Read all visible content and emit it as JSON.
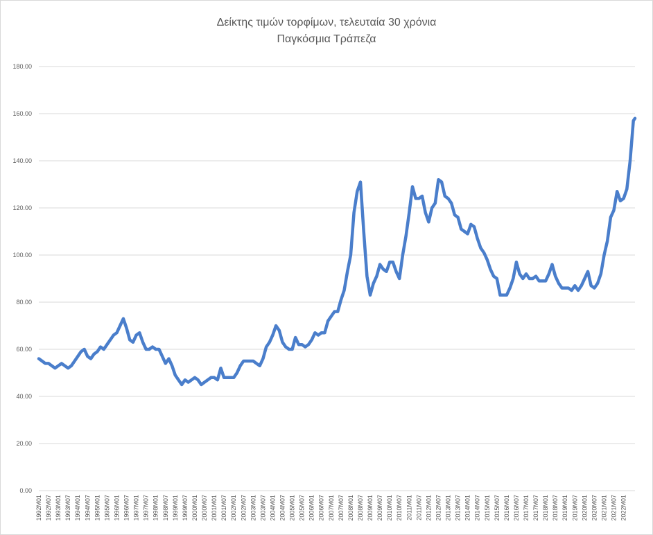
{
  "chart_data": {
    "type": "line",
    "title": "Δείκτης τιμών τορφίμων, τελευταία 30 χρόνια",
    "subtitle": "Παγκόσμια Τράπεζα",
    "xlabel": "",
    "ylabel": "",
    "ylim": [
      0,
      180
    ],
    "y_ticks": [
      "0.00",
      "20.00",
      "40.00",
      "60.00",
      "80.00",
      "100.00",
      "120.00",
      "140.00",
      "160.00",
      "180.00"
    ],
    "grid": true,
    "legend": "none",
    "line_color": "#4a7ecb",
    "x_tick_labels": [
      "1992M01",
      "1992M07",
      "1993M01",
      "1993M07",
      "1994M01",
      "1994M07",
      "1995M01",
      "1995M07",
      "1996M01",
      "1996M07",
      "1997M01",
      "1997M07",
      "1998M01",
      "1998M07",
      "1999M01",
      "1999M07",
      "2000M01",
      "2000M07",
      "2001M01",
      "2001M07",
      "2002M01",
      "2002M07",
      "2003M01",
      "2003M07",
      "2004M01",
      "2004M07",
      "2005M01",
      "2005M07",
      "2006M01",
      "2006M07",
      "2007M01",
      "2007M07",
      "2008M01",
      "2008M07",
      "2009M01",
      "2009M07",
      "2010M01",
      "2010M07",
      "2011M01",
      "2011M07",
      "2012M01",
      "2012M07",
      "2013M01",
      "2013M07",
      "2014M01",
      "2014M07",
      "2015M01",
      "2015M07",
      "2016M01",
      "2016M07",
      "2017M01",
      "2017M07",
      "2018M01",
      "2018M07",
      "2019M01",
      "2019M07",
      "2020M01",
      "2020M07",
      "2021M01",
      "2021M07",
      "2022M01"
    ],
    "series": [
      {
        "points": [
          [
            "1992M01",
            56
          ],
          [
            "1992M03",
            55
          ],
          [
            "1992M05",
            54
          ],
          [
            "1992M07",
            54
          ],
          [
            "1992M09",
            53
          ],
          [
            "1992M11",
            52
          ],
          [
            "1993M01",
            53
          ],
          [
            "1993M03",
            54
          ],
          [
            "1993M05",
            53
          ],
          [
            "1993M07",
            52
          ],
          [
            "1993M09",
            53
          ],
          [
            "1993M11",
            55
          ],
          [
            "1994M01",
            57
          ],
          [
            "1994M03",
            59
          ],
          [
            "1994M05",
            60
          ],
          [
            "1994M07",
            57
          ],
          [
            "1994M09",
            56
          ],
          [
            "1994M11",
            58
          ],
          [
            "1995M01",
            59
          ],
          [
            "1995M03",
            61
          ],
          [
            "1995M05",
            60
          ],
          [
            "1995M07",
            62
          ],
          [
            "1995M09",
            64
          ],
          [
            "1995M11",
            66
          ],
          [
            "1996M01",
            67
          ],
          [
            "1996M03",
            70
          ],
          [
            "1996M05",
            73
          ],
          [
            "1996M07",
            69
          ],
          [
            "1996M09",
            64
          ],
          [
            "1996M11",
            63
          ],
          [
            "1997M01",
            66
          ],
          [
            "1997M03",
            67
          ],
          [
            "1997M05",
            63
          ],
          [
            "1997M07",
            60
          ],
          [
            "1997M09",
            60
          ],
          [
            "1997M11",
            61
          ],
          [
            "1998M01",
            60
          ],
          [
            "1998M03",
            60
          ],
          [
            "1998M05",
            57
          ],
          [
            "1998M07",
            54
          ],
          [
            "1998M09",
            56
          ],
          [
            "1998M11",
            53
          ],
          [
            "1999M01",
            49
          ],
          [
            "1999M03",
            47
          ],
          [
            "1999M05",
            45
          ],
          [
            "1999M07",
            47
          ],
          [
            "1999M09",
            46
          ],
          [
            "1999M11",
            47
          ],
          [
            "2000M01",
            48
          ],
          [
            "2000M03",
            47
          ],
          [
            "2000M05",
            45
          ],
          [
            "2000M07",
            46
          ],
          [
            "2000M09",
            47
          ],
          [
            "2000M11",
            48
          ],
          [
            "2001M01",
            48
          ],
          [
            "2001M03",
            47
          ],
          [
            "2001M05",
            52
          ],
          [
            "2001M07",
            48
          ],
          [
            "2001M09",
            48
          ],
          [
            "2001M11",
            48
          ],
          [
            "2002M01",
            48
          ],
          [
            "2002M03",
            50
          ],
          [
            "2002M05",
            53
          ],
          [
            "2002M07",
            55
          ],
          [
            "2002M09",
            55
          ],
          [
            "2002M11",
            55
          ],
          [
            "2003M01",
            55
          ],
          [
            "2003M03",
            54
          ],
          [
            "2003M05",
            53
          ],
          [
            "2003M07",
            56
          ],
          [
            "2003M09",
            61
          ],
          [
            "2003M11",
            63
          ],
          [
            "2004M01",
            66
          ],
          [
            "2004M03",
            70
          ],
          [
            "2004M05",
            68
          ],
          [
            "2004M07",
            63
          ],
          [
            "2004M09",
            61
          ],
          [
            "2004M11",
            60
          ],
          [
            "2005M01",
            60
          ],
          [
            "2005M03",
            65
          ],
          [
            "2005M05",
            62
          ],
          [
            "2005M07",
            62
          ],
          [
            "2005M09",
            61
          ],
          [
            "2005M11",
            62
          ],
          [
            "2006M01",
            64
          ],
          [
            "2006M03",
            67
          ],
          [
            "2006M05",
            66
          ],
          [
            "2006M07",
            67
          ],
          [
            "2006M09",
            67
          ],
          [
            "2006M11",
            72
          ],
          [
            "2007M01",
            74
          ],
          [
            "2007M03",
            76
          ],
          [
            "2007M05",
            76
          ],
          [
            "2007M07",
            81
          ],
          [
            "2007M09",
            85
          ],
          [
            "2007M11",
            93
          ],
          [
            "2008M01",
            100
          ],
          [
            "2008M03",
            118
          ],
          [
            "2008M05",
            127
          ],
          [
            "2008M07",
            131
          ],
          [
            "2008M09",
            110
          ],
          [
            "2008M11",
            91
          ],
          [
            "2009M01",
            83
          ],
          [
            "2009M03",
            88
          ],
          [
            "2009M05",
            91
          ],
          [
            "2009M07",
            96
          ],
          [
            "2009M09",
            94
          ],
          [
            "2009M11",
            93
          ],
          [
            "2010M01",
            97
          ],
          [
            "2010M03",
            97
          ],
          [
            "2010M05",
            93
          ],
          [
            "2010M07",
            90
          ],
          [
            "2010M09",
            100
          ],
          [
            "2010M11",
            108
          ],
          [
            "2011M01",
            118
          ],
          [
            "2011M03",
            129
          ],
          [
            "2011M05",
            124
          ],
          [
            "2011M07",
            124
          ],
          [
            "2011M09",
            125
          ],
          [
            "2011M11",
            118
          ],
          [
            "2012M01",
            114
          ],
          [
            "2012M03",
            120
          ],
          [
            "2012M05",
            122
          ],
          [
            "2012M07",
            132
          ],
          [
            "2012M09",
            131
          ],
          [
            "2012M11",
            125
          ],
          [
            "2013M01",
            124
          ],
          [
            "2013M03",
            122
          ],
          [
            "2013M05",
            117
          ],
          [
            "2013M07",
            116
          ],
          [
            "2013M09",
            111
          ],
          [
            "2013M11",
            110
          ],
          [
            "2014M01",
            109
          ],
          [
            "2014M03",
            113
          ],
          [
            "2014M05",
            112
          ],
          [
            "2014M07",
            107
          ],
          [
            "2014M09",
            103
          ],
          [
            "2014M11",
            101
          ],
          [
            "2015M01",
            98
          ],
          [
            "2015M03",
            94
          ],
          [
            "2015M05",
            91
          ],
          [
            "2015M07",
            90
          ],
          [
            "2015M09",
            83
          ],
          [
            "2015M11",
            83
          ],
          [
            "2016M01",
            83
          ],
          [
            "2016M03",
            86
          ],
          [
            "2016M05",
            90
          ],
          [
            "2016M07",
            97
          ],
          [
            "2016M09",
            92
          ],
          [
            "2016M11",
            90
          ],
          [
            "2017M01",
            92
          ],
          [
            "2017M03",
            90
          ],
          [
            "2017M05",
            90
          ],
          [
            "2017M07",
            91
          ],
          [
            "2017M09",
            89
          ],
          [
            "2017M11",
            89
          ],
          [
            "2018M01",
            89
          ],
          [
            "2018M03",
            92
          ],
          [
            "2018M05",
            96
          ],
          [
            "2018M07",
            91
          ],
          [
            "2018M09",
            88
          ],
          [
            "2018M11",
            86
          ],
          [
            "2019M01",
            86
          ],
          [
            "2019M03",
            86
          ],
          [
            "2019M05",
            85
          ],
          [
            "2019M07",
            87
          ],
          [
            "2019M09",
            85
          ],
          [
            "2019M11",
            87
          ],
          [
            "2020M01",
            90
          ],
          [
            "2020M03",
            93
          ],
          [
            "2020M05",
            87
          ],
          [
            "2020M07",
            86
          ],
          [
            "2020M09",
            88
          ],
          [
            "2020M11",
            92
          ],
          [
            "2021M01",
            100
          ],
          [
            "2021M03",
            106
          ],
          [
            "2021M05",
            116
          ],
          [
            "2021M07",
            119
          ],
          [
            "2021M09",
            127
          ],
          [
            "2021M11",
            123
          ],
          [
            "2022M01",
            124
          ],
          [
            "2022M03",
            128
          ],
          [
            "2022M05",
            140
          ],
          [
            "2022M07",
            157
          ],
          [
            "2022M08",
            158
          ]
        ]
      }
    ]
  }
}
